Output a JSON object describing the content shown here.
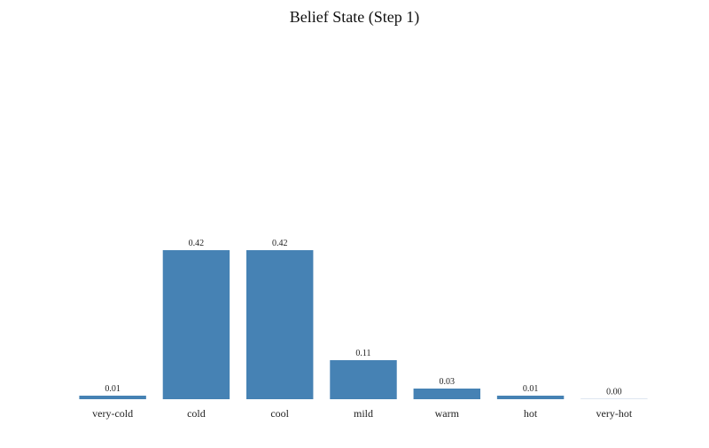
{
  "chart_data": {
    "type": "bar",
    "title": "Belief State (Step 1)",
    "xlabel": "",
    "ylabel": "",
    "categories": [
      "very-cold",
      "cold",
      "cool",
      "mild",
      "warm",
      "hot",
      "very-hot"
    ],
    "values": [
      0.01,
      0.42,
      0.42,
      0.11,
      0.03,
      0.01,
      0.0
    ],
    "value_labels": [
      "0.01",
      "0.42",
      "0.42",
      "0.11",
      "0.03",
      "0.01",
      "0.00"
    ],
    "ylim": [
      0,
      1.0
    ],
    "grid": false,
    "bar_color": "#4682b4"
  }
}
